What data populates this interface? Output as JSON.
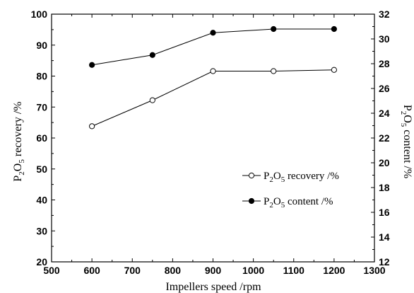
{
  "chart_data": {
    "type": "line",
    "xlabel": "Impellers speed /rpm",
    "ylabel_left": [
      "P",
      "2",
      "O",
      "5",
      " recovery /%"
    ],
    "ylabel_right": [
      "P",
      "2",
      "O",
      "5",
      " content /%"
    ],
    "xlim": [
      500,
      1300
    ],
    "xticks": [
      500,
      600,
      700,
      800,
      900,
      1000,
      1100,
      1200,
      1300
    ],
    "ylim_left": [
      20,
      100
    ],
    "yticks_left": [
      20,
      30,
      40,
      50,
      60,
      70,
      80,
      90,
      100
    ],
    "ylim_right": [
      12,
      32
    ],
    "yticks_right": [
      12,
      14,
      16,
      18,
      20,
      22,
      24,
      26,
      28,
      30,
      32
    ],
    "x": [
      600,
      750,
      900,
      1050,
      1200
    ],
    "series": [
      {
        "name": [
          "P",
          "2",
          "O",
          "5",
          " recovery /%"
        ],
        "axis": "left",
        "marker": "open-circle",
        "values": [
          63.8,
          72.2,
          81.6,
          81.6,
          82.0
        ]
      },
      {
        "name": [
          "P",
          "2",
          "O",
          "5",
          " content /%"
        ],
        "axis": "right",
        "marker": "filled-circle",
        "values": [
          27.9,
          28.7,
          30.5,
          30.8,
          30.8
        ]
      }
    ],
    "legend_position": "lower-right",
    "grid": false
  }
}
